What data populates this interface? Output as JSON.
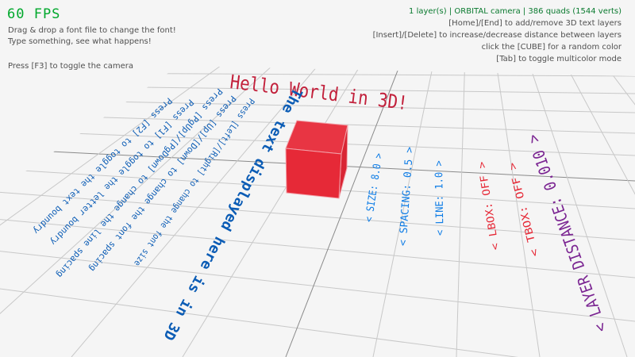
{
  "hud": {
    "fps": "60 FPS",
    "help_left": [
      "Drag & drop a font file to change the font!",
      "Type something, see what happens!",
      "Press [F3] to toggle the camera"
    ],
    "status": "1 layer(s) | ORBITAL camera |  386 quads (1544 verts)",
    "help_right": [
      "[Home]/[End] to add/remove 3D text layers",
      "[Insert]/[Delete] to increase/decrease distance between layers",
      "click the [CUBE] for a random color",
      "[Tab] to toggle multicolor mode"
    ]
  },
  "scene": {
    "hello": "Hello World in 3D!",
    "cube_color": "#e62937",
    "instructions": [
      "Press [F2] to toggle the text boundry",
      "Press [F1] to toggle the letter boundry",
      "Press [PgUp]/[PgDown] to change the line spacing",
      "Press [Up]/[Down] to change the font spacing",
      "Press [Left]/[Right] to change the font size"
    ],
    "displayed": "The text displayed here is in 3D",
    "settings": {
      "size": "< SIZE: 8.0 >",
      "spacing": "< SPACING: 0.5 >",
      "line": "< LINE: 1.0 >",
      "lbox": "< LBOX: OFF >",
      "tbox": "< TBOX: OFF >",
      "layer_distance": "< LAYER DISTANCE: 0.010 >"
    }
  },
  "colors": {
    "fps": "#00a82c",
    "status": "#0a7a2f",
    "text_blue": "#0b5cb5",
    "label_blue": "#0f7de6",
    "label_red": "#e62937",
    "label_purple": "#7b2592",
    "hello_red": "#c2203b"
  }
}
